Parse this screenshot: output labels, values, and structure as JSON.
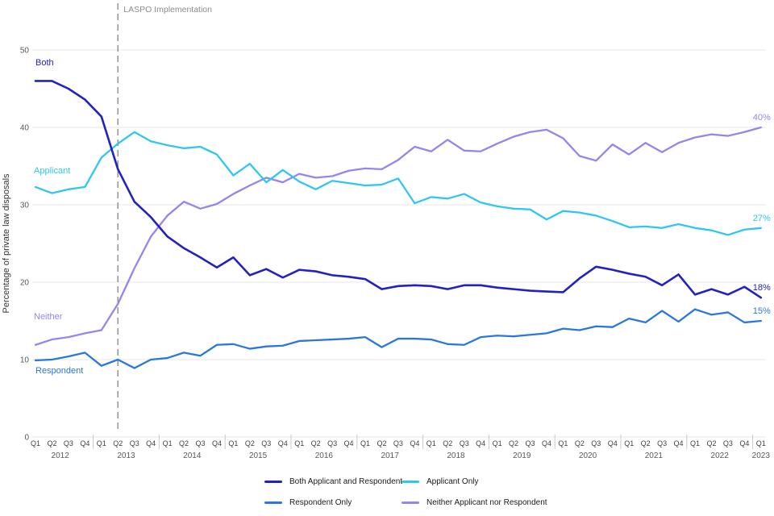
{
  "chart_data": {
    "type": "line",
    "ylabel": "Percentage of private law disposals",
    "y_ticks": [
      0,
      10,
      20,
      30,
      40,
      50
    ],
    "ylim": [
      0,
      50
    ],
    "grid": "horizontal",
    "legend_position": "bottom",
    "x_axis": {
      "quarter_cycle": [
        "Q1",
        "Q2",
        "Q3",
        "Q4"
      ],
      "years": [
        "2012",
        "2013",
        "2014",
        "2015",
        "2016",
        "2017",
        "2018",
        "2019",
        "2020",
        "2021",
        "2022",
        "2023"
      ],
      "n_points": 45,
      "first_point": "2012 Q1",
      "last_point": "2023 Q1"
    },
    "annotation": {
      "text": "LASPO Implementation",
      "x_index": 5
    },
    "series": [
      {
        "key": "neither",
        "name": "Neither Applicant nor Respondent",
        "inline_label": "Neither",
        "end_label": "40%",
        "color": "#9387ea",
        "values": [
          11.9,
          12.6,
          12.9,
          13.4,
          13.8,
          17.2,
          21.8,
          25.9,
          28.6,
          30.4,
          29.5,
          30.1,
          31.4,
          32.5,
          33.5,
          32.9,
          34.0,
          33.5,
          33.7,
          34.4,
          34.7,
          34.6,
          35.8,
          37.5,
          36.9,
          38.4,
          37.0,
          36.9,
          37.9,
          38.8,
          39.4,
          39.7,
          38.6,
          36.3,
          35.7,
          37.8,
          36.5,
          38.0,
          36.8,
          38.0,
          38.7,
          39.1,
          38.9,
          39.4,
          40.0
        ]
      },
      {
        "key": "respondent",
        "name": "Respondent Only",
        "inline_label": "Respondent",
        "end_label": "15%",
        "color": "#2a78dd",
        "values": [
          9.9,
          10.0,
          10.4,
          10.9,
          9.2,
          10.0,
          8.9,
          10.0,
          10.2,
          10.9,
          10.5,
          11.9,
          12.0,
          11.4,
          11.7,
          11.8,
          12.4,
          12.5,
          12.6,
          12.7,
          12.9,
          11.6,
          12.7,
          12.7,
          12.6,
          12.0,
          11.9,
          12.9,
          13.1,
          13.0,
          13.2,
          13.4,
          14.0,
          13.8,
          14.3,
          14.2,
          15.3,
          14.8,
          16.3,
          14.9,
          16.5,
          15.8,
          16.1,
          14.8,
          15.0
        ]
      },
      {
        "key": "applicant",
        "name": "Applicant Only",
        "inline_label": "Applicant",
        "end_label": "27%",
        "color": "#30c6f2",
        "values": [
          32.3,
          31.5,
          32.0,
          32.3,
          36.1,
          37.9,
          39.4,
          38.2,
          37.7,
          37.3,
          37.5,
          36.5,
          33.8,
          35.3,
          32.9,
          34.5,
          33.0,
          32.0,
          33.1,
          32.8,
          32.5,
          32.6,
          33.4,
          30.2,
          31.0,
          30.8,
          31.4,
          30.3,
          29.8,
          29.5,
          29.4,
          28.1,
          29.2,
          29.0,
          28.6,
          27.9,
          27.1,
          27.2,
          27.0,
          27.5,
          27.0,
          26.7,
          26.1,
          26.8,
          27.0
        ]
      },
      {
        "key": "both",
        "name": "Both Applicant and Respondent",
        "inline_label": "Both",
        "end_label": "18%",
        "color": "#2222c2",
        "values": [
          46.0,
          46.0,
          45.0,
          43.6,
          41.4,
          34.6,
          30.4,
          28.4,
          25.9,
          24.4,
          23.2,
          21.9,
          23.2,
          20.9,
          21.7,
          20.6,
          21.6,
          21.4,
          20.9,
          20.7,
          20.4,
          19.1,
          19.5,
          19.6,
          19.5,
          19.1,
          19.6,
          19.6,
          19.3,
          19.1,
          18.9,
          18.8,
          18.7,
          20.5,
          22.0,
          21.6,
          21.1,
          20.7,
          19.6,
          21.0,
          18.4,
          19.1,
          18.4,
          19.4,
          18.0
        ]
      }
    ],
    "colors": {
      "gridline": "#e7e7e7",
      "axis_text": "#595959",
      "quarter_text": "#3f3f3f",
      "annotation_line": "#999999",
      "annotation_text": "#8c8c8c",
      "year_separator": "#c9c9c9"
    }
  }
}
